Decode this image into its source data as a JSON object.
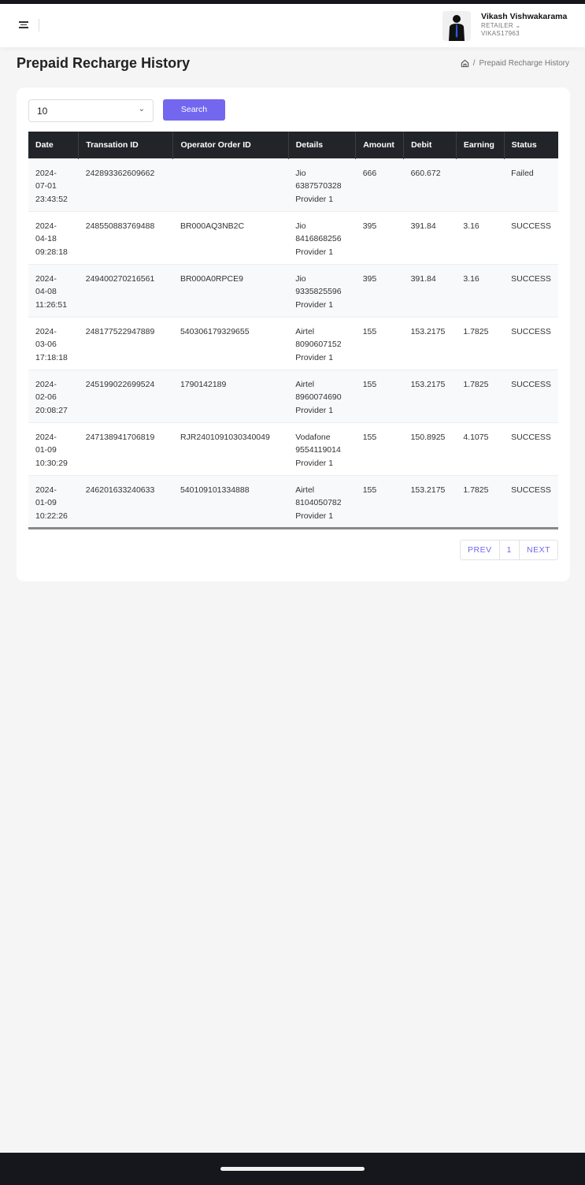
{
  "header": {
    "user_name": "Vikash Vishwakarama",
    "role": "RETAILER ⌄",
    "user_id": "VIKAS17963"
  },
  "page": {
    "title": "Prepaid Recharge History",
    "breadcrumb_sep": "/",
    "breadcrumb_current": "Prepaid Recharge History"
  },
  "filters": {
    "page_size": "10",
    "search_label": "Search"
  },
  "table": {
    "columns": [
      "Date",
      "Transation ID",
      "Operator Order ID",
      "Details",
      "Amount",
      "Debit",
      "Earning",
      "Status"
    ],
    "rows": [
      {
        "date": [
          "2024-",
          "07-01",
          "23:43:52"
        ],
        "txn": "242893362609662",
        "order": "",
        "details": [
          "Jio",
          "6387570328",
          "Provider 1"
        ],
        "amount": "666",
        "debit": "660.672",
        "earning": "",
        "status": "Failed"
      },
      {
        "date": [
          "2024-",
          "04-18",
          "09:28:18"
        ],
        "txn": "248550883769488",
        "order": "BR000AQ3NB2C",
        "details": [
          "Jio",
          "8416868256",
          "Provider 1"
        ],
        "amount": "395",
        "debit": "391.84",
        "earning": "3.16",
        "status": "SUCCESS"
      },
      {
        "date": [
          "2024-",
          "04-08",
          "11:26:51"
        ],
        "txn": "249400270216561",
        "order": "BR000A0RPCE9",
        "details": [
          "Jio",
          "9335825596",
          "Provider 1"
        ],
        "amount": "395",
        "debit": "391.84",
        "earning": "3.16",
        "status": "SUCCESS"
      },
      {
        "date": [
          "2024-",
          "03-06",
          "17:18:18"
        ],
        "txn": "248177522947889",
        "order": "540306179329655",
        "details": [
          "Airtel",
          "8090607152",
          "Provider 1"
        ],
        "amount": "155",
        "debit": "153.2175",
        "earning": "1.7825",
        "status": "SUCCESS"
      },
      {
        "date": [
          "2024-",
          "02-06",
          "20:08:27"
        ],
        "txn": "245199022699524",
        "order": "1790142189",
        "details": [
          "Airtel",
          "8960074690",
          "Provider 1"
        ],
        "amount": "155",
        "debit": "153.2175",
        "earning": "1.7825",
        "status": "SUCCESS"
      },
      {
        "date": [
          "2024-",
          "01-09",
          "10:30:29"
        ],
        "txn": "247138941706819",
        "order": "RJR2401091030340049",
        "details": [
          "Vodafone",
          "9554119014",
          "Provider 1"
        ],
        "amount": "155",
        "debit": "150.8925",
        "earning": "4.1075",
        "status": "SUCCESS"
      },
      {
        "date": [
          "2024-",
          "01-09",
          "10:22:26"
        ],
        "txn": "246201633240633",
        "order": "540109101334888",
        "details": [
          "Airtel",
          "8104050782",
          "Provider 1"
        ],
        "amount": "155",
        "debit": "153.2175",
        "earning": "1.7825",
        "status": "SUCCESS"
      }
    ]
  },
  "pagination": {
    "prev": "PREV",
    "current": "1",
    "next": "NEXT"
  },
  "colors": {
    "accent": "#7367f0",
    "table_header": "#212529"
  }
}
